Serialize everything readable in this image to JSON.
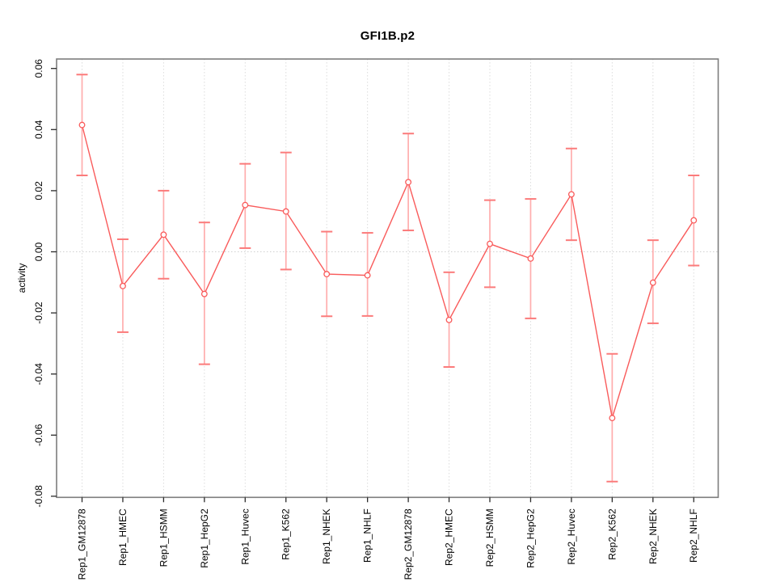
{
  "window": {
    "background": "#ffffff"
  },
  "chart_data": {
    "type": "line",
    "title": "GFI1B.p2",
    "xlabel": "",
    "ylabel": "activity",
    "ylim": [
      -0.08,
      0.06
    ],
    "yticks": [
      0.06,
      0.04,
      0.02,
      0.0,
      -0.02,
      -0.04,
      -0.06,
      -0.08
    ],
    "ytick_decimals": 2,
    "legend": "none",
    "grid": "dotted vertical gridline at each category; dotted horizontal line at y=0",
    "categories": [
      "Rep1_GM12878",
      "Rep1_HMEC",
      "Rep1_HSMM",
      "Rep1_HepG2",
      "Rep1_Huvec",
      "Rep1_K562",
      "Rep1_NHEK",
      "Rep1_NHLF",
      "Rep2_GM12878",
      "Rep2_HMEC",
      "Rep2_HSMM",
      "Rep2_HepG2",
      "Rep2_Huvec",
      "Rep2_K562",
      "Rep2_NHEK",
      "Rep2_NHLF"
    ],
    "series": [
      {
        "name": "activity",
        "marker": "open-circle",
        "values": [
          0.0415,
          -0.0112,
          0.0056,
          -0.0138,
          0.0153,
          0.0132,
          -0.0073,
          -0.0077,
          0.0228,
          -0.0223,
          0.0026,
          -0.0022,
          0.0188,
          -0.0544,
          -0.0101,
          0.0103
        ],
        "upper": [
          0.058,
          0.0041,
          0.02,
          0.0096,
          0.0288,
          0.0325,
          0.0066,
          0.0062,
          0.0387,
          -0.0067,
          0.0169,
          0.0173,
          0.0338,
          -0.0334,
          0.0038,
          0.025
        ],
        "lower": [
          0.025,
          -0.0263,
          -0.0088,
          -0.0368,
          0.0012,
          -0.0058,
          -0.0211,
          -0.021,
          0.007,
          -0.0377,
          -0.0116,
          -0.0218,
          0.0038,
          -0.0752,
          -0.0234,
          -0.0045
        ]
      }
    ],
    "colors": {
      "line": "#f95b5b",
      "marker_stroke": "#f95b5b",
      "marker_fill": "#ffffff",
      "errorbar_stem": "#ffadad",
      "errorbar_cap": "#fb7b7b",
      "gridline": "#dcdcdc",
      "zero_line": "#d0d0d0",
      "plot_border": "#7d7d7d",
      "tick": "#2a2a2a",
      "text": "#000000"
    }
  }
}
